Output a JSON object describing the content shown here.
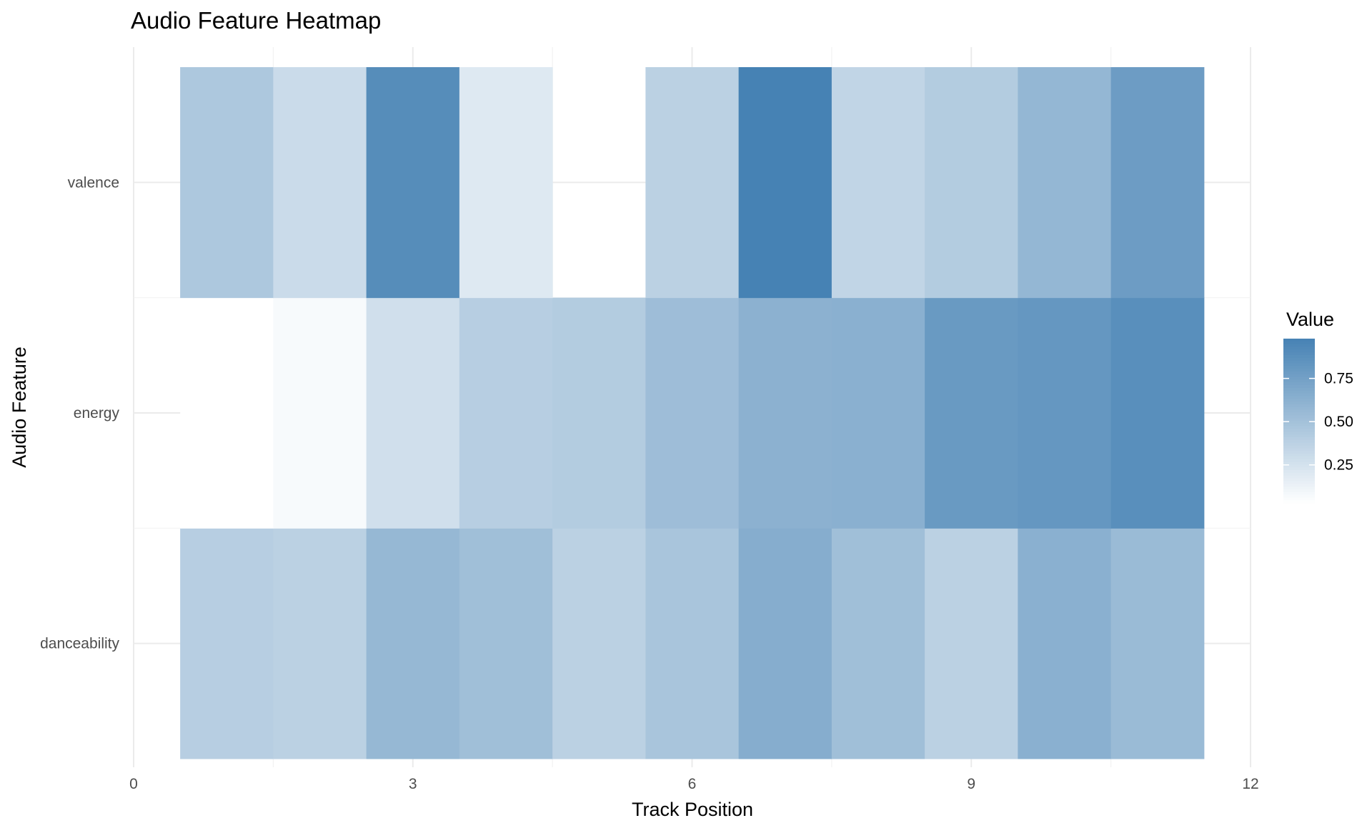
{
  "chart_data": {
    "type": "heatmap",
    "title": "Audio Feature Heatmap",
    "xlabel": "Track Position",
    "ylabel": "Audio Feature",
    "x": [
      1,
      2,
      3,
      4,
      5,
      6,
      7,
      8,
      9,
      10,
      11
    ],
    "y_categories": [
      "danceability",
      "energy",
      "valence"
    ],
    "xlim": [
      0,
      12
    ],
    "x_ticks": [
      0,
      3,
      6,
      9,
      12
    ],
    "grid": true,
    "values": {
      "valence": [
        0.45,
        0.3,
        0.9,
        0.2,
        null,
        0.38,
        0.98,
        0.35,
        0.42,
        0.58,
        0.78
      ],
      "energy": [
        0.03,
        0.07,
        0.27,
        0.4,
        0.42,
        0.53,
        0.62,
        0.63,
        0.8,
        0.82,
        0.88
      ],
      "danceability": [
        0.4,
        0.38,
        0.57,
        0.52,
        0.38,
        0.47,
        0.65,
        0.52,
        0.38,
        0.63,
        0.55
      ]
    },
    "legend": {
      "title": "Value",
      "position": "right",
      "ticks": [
        0.25,
        0.5,
        0.75
      ],
      "tick_labels": [
        "0.25",
        "0.50",
        "0.75"
      ],
      "range": [
        0.03,
        0.98
      ],
      "color_low": "#ffffff",
      "color_high": "#4682b4"
    }
  }
}
